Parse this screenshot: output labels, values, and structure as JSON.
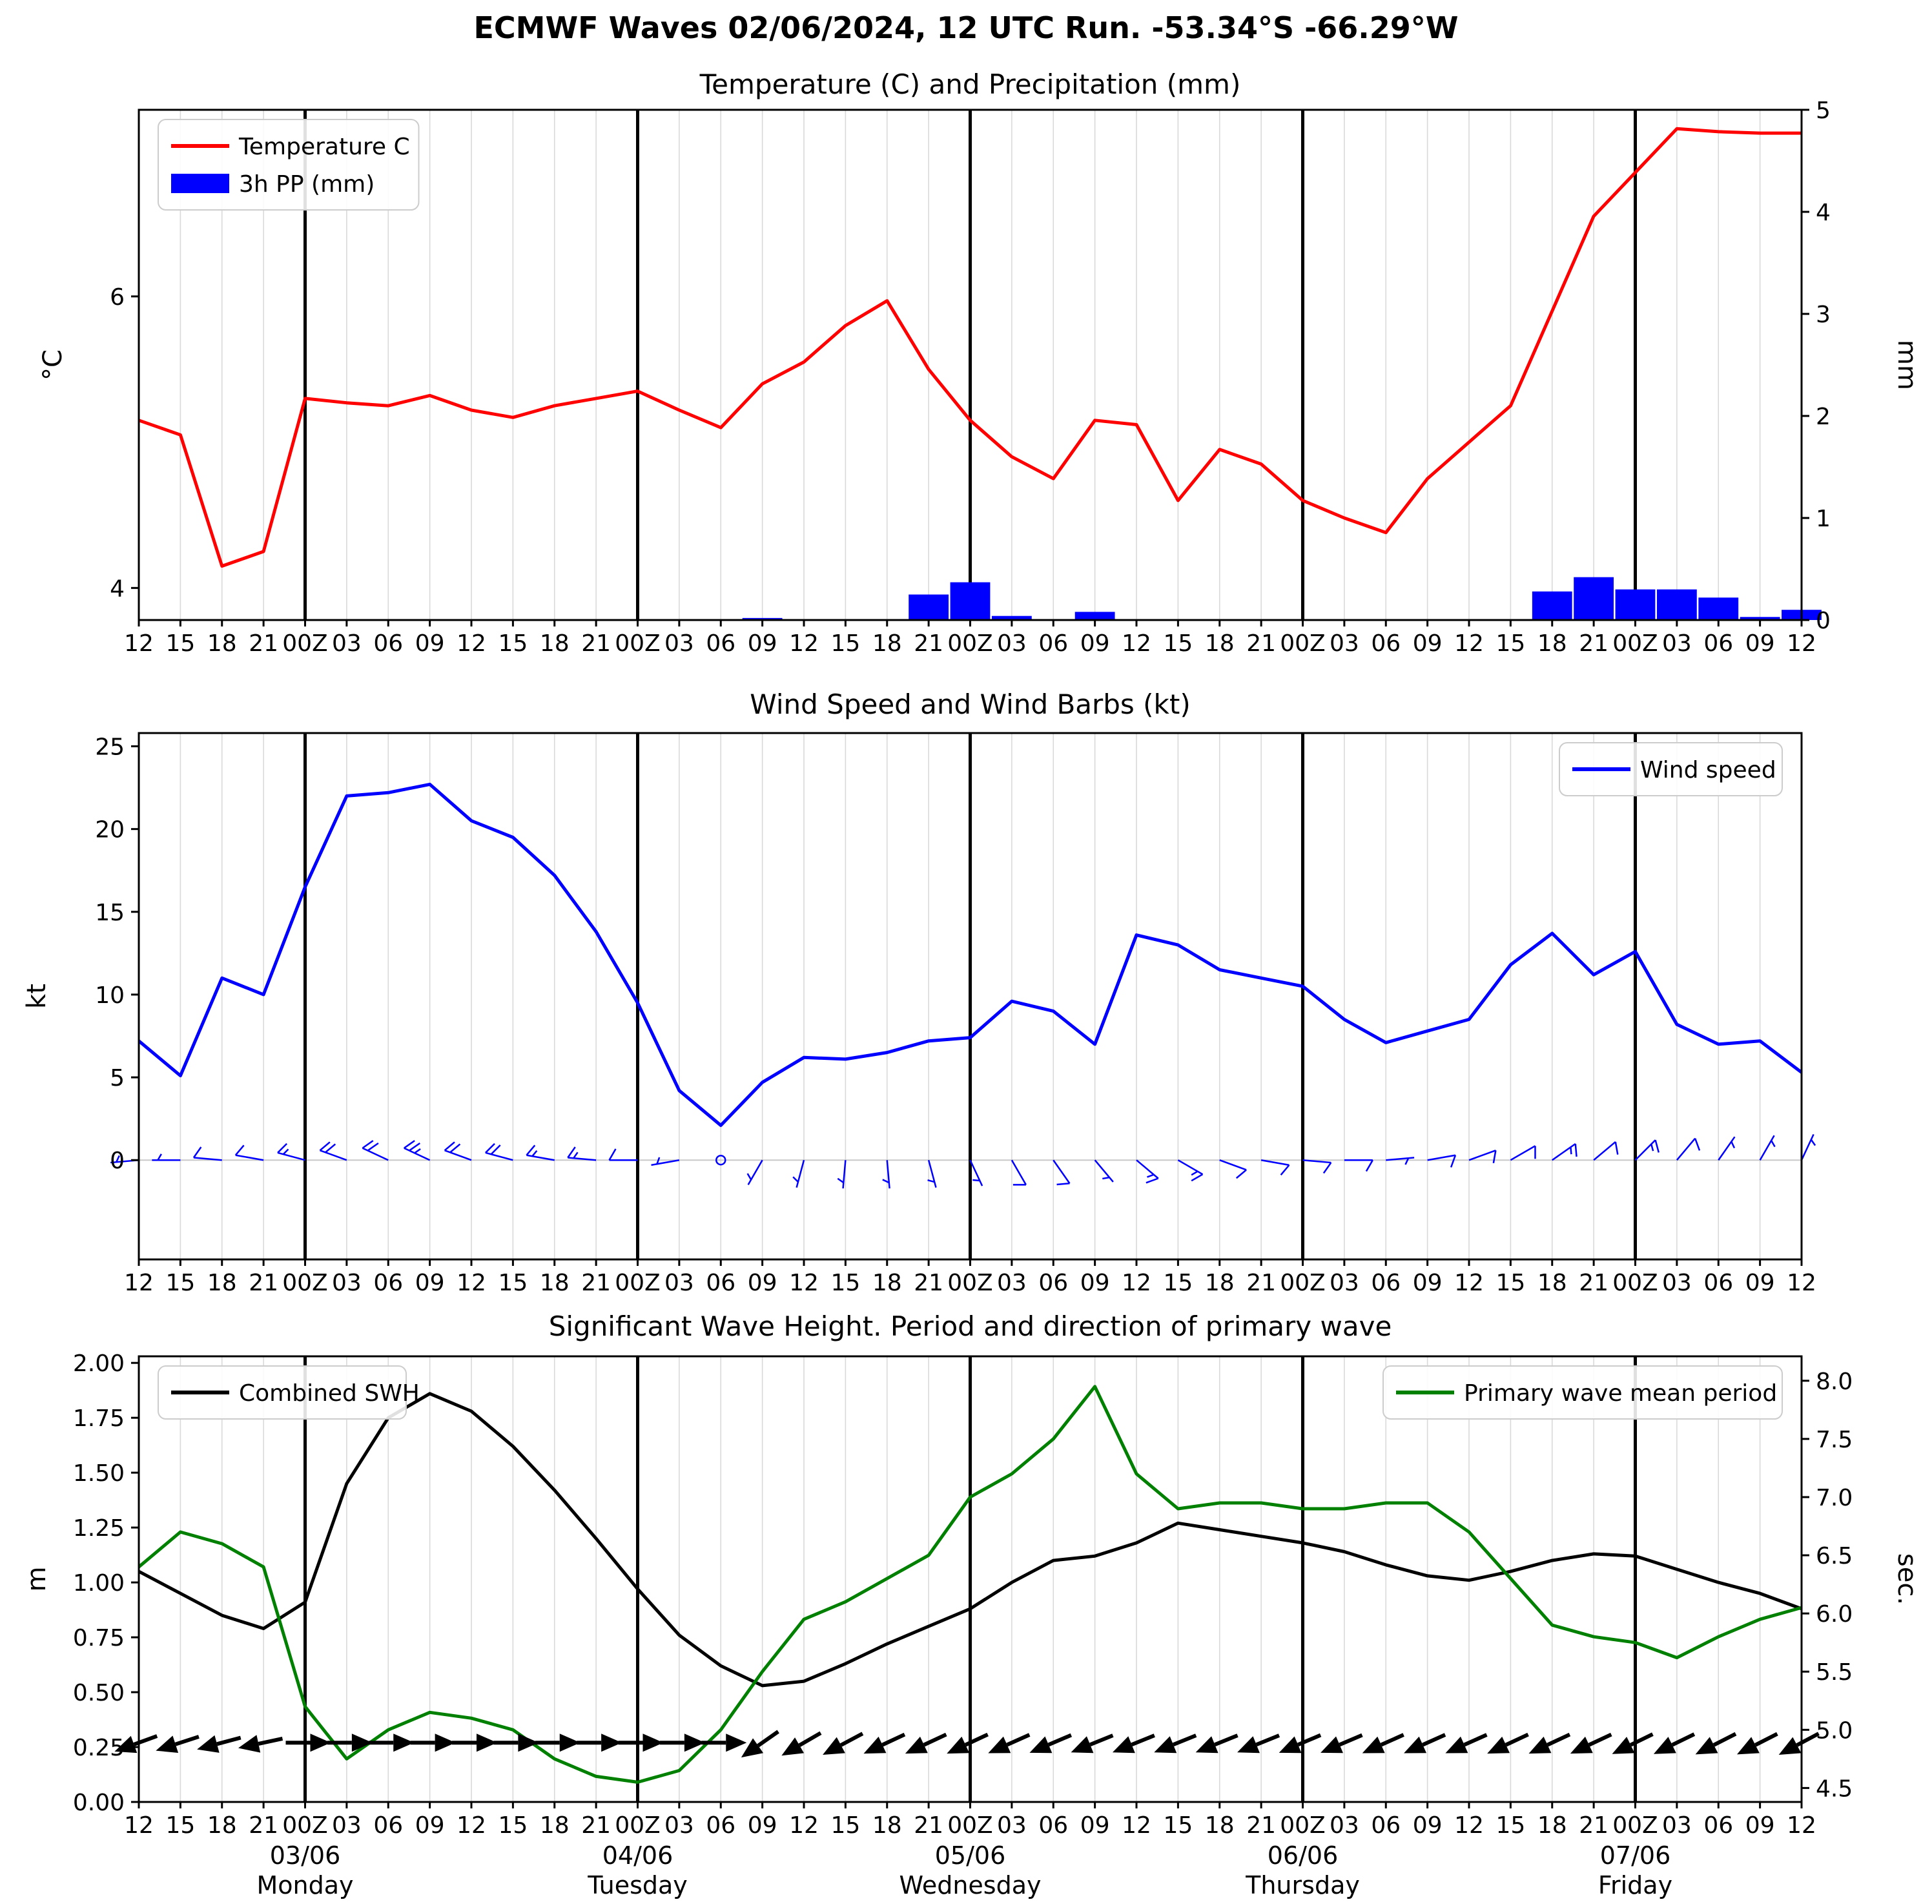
{
  "title": "ECMWF Waves 02/06/2024, 12 UTC Run. -53.34°S -66.29°W",
  "x_axis": {
    "tick_labels": [
      "12",
      "15",
      "18",
      "21",
      "00Z",
      "03",
      "06",
      "09",
      "12",
      "15",
      "18",
      "21",
      "00Z",
      "03",
      "06",
      "09",
      "12",
      "15",
      "18",
      "21",
      "00Z",
      "03",
      "06",
      "09",
      "12",
      "15",
      "18",
      "21",
      "00Z",
      "03",
      "06",
      "09",
      "12",
      "15",
      "18",
      "21",
      "00Z",
      "03",
      "06",
      "09",
      "12"
    ],
    "day_marks": [
      {
        "index": 4,
        "date": "03/06",
        "day": "Monday"
      },
      {
        "index": 12,
        "date": "04/06",
        "day": "Tuesday"
      },
      {
        "index": 20,
        "date": "05/06",
        "day": "Wednesday"
      },
      {
        "index": 28,
        "date": "06/06",
        "day": "Thursday"
      },
      {
        "index": 36,
        "date": "07/06",
        "day": "Friday"
      }
    ]
  },
  "chart_data": [
    {
      "id": "temp-precip",
      "type": "line+bar",
      "title": "Temperature (C) and Precipitation (mm)",
      "ylabel": "°C",
      "ylabel_right": "mm",
      "ylim": [
        3.78,
        7.28
      ],
      "yticks": [
        "4",
        "6"
      ],
      "ylim_right": [
        0,
        5
      ],
      "yticks_right": [
        "0",
        "1",
        "2",
        "3",
        "4",
        "5"
      ],
      "right_axis_color": "#000000",
      "series": [
        {
          "name": "3h PP (mm)",
          "data_name": "precip-bars",
          "type": "bar",
          "axis": "right",
          "color": "#0000ff",
          "values": [
            0,
            0,
            0,
            0,
            0,
            0,
            0,
            0,
            0,
            0,
            0,
            0,
            0,
            0,
            0,
            0.02,
            0,
            0,
            0,
            0.25,
            0.37,
            0.04,
            0,
            0.08,
            0,
            0,
            0,
            0,
            0,
            0,
            0,
            0,
            0,
            0,
            0.28,
            0.42,
            0.3,
            0.3,
            0.22,
            0.03,
            0.1
          ]
        },
        {
          "name": "Temperature C",
          "data_name": "temperature-line",
          "type": "line",
          "axis": "left",
          "color": "#ff0000",
          "values": [
            5.15,
            5.05,
            4.15,
            4.25,
            5.3,
            5.27,
            5.25,
            5.32,
            5.22,
            5.17,
            5.25,
            5.3,
            5.35,
            5.22,
            5.1,
            5.4,
            5.55,
            5.8,
            5.97,
            5.5,
            5.15,
            4.9,
            4.75,
            5.15,
            5.12,
            4.6,
            4.95,
            4.85,
            4.6,
            4.48,
            4.38,
            4.75,
            5.0,
            5.25,
            5.9,
            6.55,
            6.85,
            7.15,
            7.13,
            7.12,
            7.12
          ]
        }
      ],
      "legends": [
        {
          "pos": "left",
          "entries": [
            {
              "label": "Temperature C",
              "color": "#ff0000",
              "sample": "line"
            },
            {
              "label": "3h PP (mm)",
              "color": "#0000ff",
              "sample": "patch"
            }
          ]
        }
      ]
    },
    {
      "id": "wind",
      "type": "line",
      "title": "Wind Speed and Wind Barbs (kt)",
      "ylabel": "kt",
      "ylim": [
        -6,
        25.8
      ],
      "yticks": [
        "0",
        "5",
        "10",
        "15",
        "20",
        "25"
      ],
      "zero_line": true,
      "series": [
        {
          "name": "Wind speed",
          "data_name": "wind-speed-line",
          "type": "line",
          "axis": "left",
          "color": "#0000ff",
          "values": [
            7.2,
            5.1,
            11,
            10,
            16.5,
            22,
            22.2,
            22.7,
            20.5,
            19.5,
            17.2,
            13.8,
            9.5,
            4.2,
            2.1,
            4.7,
            6.2,
            6.1,
            6.5,
            7.2,
            7.4,
            9.6,
            9,
            7,
            13.6,
            13,
            11.5,
            11,
            10.5,
            8.5,
            7.1,
            7.8,
            8.5,
            11.8,
            13.7,
            11.2,
            12.6,
            8.2,
            7,
            7.2,
            5.3
          ]
        }
      ],
      "barbs": {
        "color": "#0000ff",
        "directions_from": [
          265,
          270,
          275,
          280,
          285,
          290,
          295,
          295,
          290,
          285,
          280,
          275,
          270,
          260,
          0,
          210,
          195,
          185,
          175,
          165,
          155,
          150,
          145,
          140,
          130,
          120,
          110,
          100,
          95,
          90,
          85,
          80,
          70,
          60,
          55,
          50,
          45,
          40,
          35,
          30,
          25
        ]
      },
      "legends": [
        {
          "pos": "right",
          "entries": [
            {
              "label": "Wind speed",
              "color": "#0000ff",
              "sample": "line"
            }
          ]
        }
      ]
    },
    {
      "id": "waves",
      "type": "line",
      "title": "Significant Wave Height. Period and direction of primary wave",
      "ylabel": "m",
      "ylabel_right": "sec.",
      "ylim": [
        0,
        2.03
      ],
      "yticks": [
        "0.00",
        "0.25",
        "0.50",
        "0.75",
        "1.00",
        "1.25",
        "1.50",
        "1.75",
        "2.00"
      ],
      "ylim_right": [
        4.38,
        8.21
      ],
      "yticks_right": [
        "4.5",
        "5.0",
        "5.5",
        "6.0",
        "6.5",
        "7.0",
        "7.5",
        "8.0"
      ],
      "right_axis_color": "#008000",
      "series": [
        {
          "name": "Combined SWH",
          "data_name": "swh-line",
          "type": "line",
          "axis": "left",
          "color": "#000000",
          "values": [
            1.05,
            0.95,
            0.85,
            0.79,
            0.91,
            1.45,
            1.75,
            1.86,
            1.78,
            1.62,
            1.42,
            1.2,
            0.97,
            0.76,
            0.62,
            0.53,
            0.55,
            0.63,
            0.72,
            0.8,
            0.88,
            1.0,
            1.1,
            1.12,
            1.18,
            1.27,
            1.24,
            1.21,
            1.18,
            1.14,
            1.08,
            1.03,
            1.01,
            1.05,
            1.1,
            1.13,
            1.12,
            1.06,
            1.0,
            0.95,
            0.88
          ]
        },
        {
          "name": "Primary wave mean period",
          "data_name": "wave-period-line",
          "type": "line",
          "axis": "right",
          "color": "#008000",
          "values": [
            6.4,
            6.7,
            6.6,
            6.4,
            5.2,
            4.75,
            5.0,
            5.15,
            5.1,
            5.0,
            4.75,
            4.6,
            4.55,
            4.65,
            5.0,
            5.5,
            5.95,
            6.1,
            6.3,
            6.5,
            7.0,
            7.2,
            7.5,
            7.95,
            7.2,
            6.9,
            6.95,
            6.95,
            6.9,
            6.9,
            6.95,
            6.95,
            6.7,
            6.3,
            5.9,
            5.8,
            5.75,
            5.62,
            5.8,
            5.95,
            6.05
          ]
        }
      ],
      "arrows": {
        "y": 0.27,
        "color": "#000000",
        "angles_to": [
          250,
          252,
          255,
          258,
          90,
          90,
          90,
          90,
          90,
          90,
          90,
          90,
          90,
          90,
          90,
          235,
          240,
          242,
          245,
          245,
          245,
          246,
          247,
          248,
          248,
          248,
          248,
          248,
          247,
          247,
          246,
          246,
          246,
          245,
          245,
          245,
          244,
          244,
          243,
          243,
          242
        ]
      },
      "legends": [
        {
          "pos": "left",
          "entries": [
            {
              "label": "Combined SWH",
              "color": "#000000",
              "sample": "line"
            }
          ]
        },
        {
          "pos": "right",
          "entries": [
            {
              "label": "Primary wave mean period",
              "color": "#008000",
              "sample": "line"
            }
          ]
        }
      ]
    }
  ]
}
